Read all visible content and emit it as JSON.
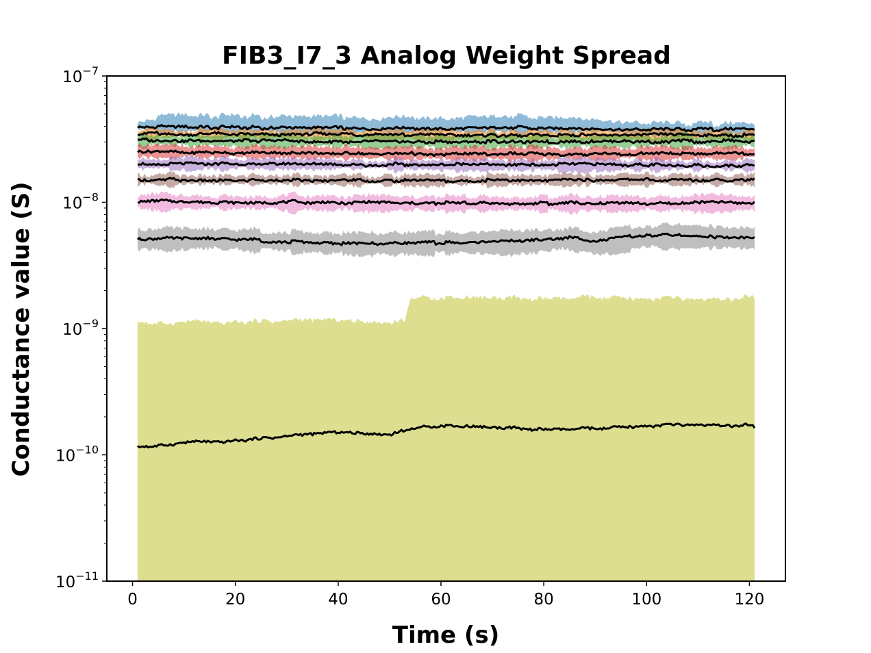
{
  "chart_data": {
    "type": "area",
    "title": "FIB3_I7_3 Analog Weight Spread",
    "xlabel": "Time (s)",
    "ylabel": "Conductance value (S)",
    "xlim": [
      -5,
      127
    ],
    "ylim": [
      1e-11,
      1e-07
    ],
    "yscale": "log",
    "grid": false,
    "legend": "none",
    "x_ticks": [
      0,
      20,
      40,
      60,
      80,
      100,
      120
    ],
    "y_ticks": [
      {
        "value": 1e-11,
        "base": "10",
        "exp": "−11"
      },
      {
        "value": 1e-10,
        "base": "10",
        "exp": "−10"
      },
      {
        "value": 1e-09,
        "base": "10",
        "exp": "−9"
      },
      {
        "value": 1e-08,
        "base": "10",
        "exp": "−8"
      },
      {
        "value": 1e-07,
        "base": "10",
        "exp": "−7"
      }
    ],
    "series": [
      {
        "color": "#1f77b4",
        "x": [
          1,
          7,
          20,
          40,
          60,
          70,
          85,
          92,
          100,
          121
        ],
        "mean": [
          4e-08,
          3.95e-08,
          3.9e-08,
          3.85e-08,
          3.85e-08,
          3.9e-08,
          3.85e-08,
          3.85e-08,
          3.75e-08,
          3.8e-08
        ],
        "low": [
          3.7e-08,
          3.65e-08,
          3.6e-08,
          3.55e-08,
          3.55e-08,
          3.6e-08,
          3.55e-08,
          3.55e-08,
          3.45e-08,
          3.5e-08
        ],
        "high": [
          4.4e-08,
          4.9e-08,
          4.8e-08,
          4.7e-08,
          4.7e-08,
          4.8e-08,
          4.7e-08,
          4.6e-08,
          4.2e-08,
          4.2e-08
        ]
      },
      {
        "color": "#ff7f0e",
        "x": [
          1,
          30,
          60,
          90,
          121
        ],
        "mean": [
          3.5e-08,
          3.45e-08,
          3.4e-08,
          3.4e-08,
          3.4e-08
        ],
        "low": [
          3.25e-08,
          3.2e-08,
          3.15e-08,
          3.15e-08,
          3.15e-08
        ],
        "high": [
          3.8e-08,
          3.75e-08,
          3.7e-08,
          3.7e-08,
          3.7e-08
        ]
      },
      {
        "color": "#2ca02c",
        "x": [
          1,
          30,
          60,
          90,
          121
        ],
        "mean": [
          3.1e-08,
          3.05e-08,
          3e-08,
          3e-08,
          3.05e-08
        ],
        "low": [
          2.8e-08,
          2.75e-08,
          2.7e-08,
          2.75e-08,
          2.75e-08
        ],
        "high": [
          3.45e-08,
          3.4e-08,
          3.4e-08,
          3.35e-08,
          3.4e-08
        ]
      },
      {
        "color": "#d62728",
        "x": [
          1,
          30,
          60,
          90,
          121
        ],
        "mean": [
          2.5e-08,
          2.45e-08,
          2.4e-08,
          2.4e-08,
          2.45e-08
        ],
        "low": [
          2.3e-08,
          2.25e-08,
          2.2e-08,
          2.2e-08,
          2.2e-08
        ],
        "high": [
          2.8e-08,
          2.75e-08,
          2.7e-08,
          2.7e-08,
          2.75e-08
        ]
      },
      {
        "color": "#9467bd",
        "x": [
          1,
          30,
          60,
          90,
          121
        ],
        "mean": [
          2e-08,
          2e-08,
          1.98e-08,
          1.98e-08,
          1.95e-08
        ],
        "low": [
          1.85e-08,
          1.85e-08,
          1.8e-08,
          1.8e-08,
          1.8e-08
        ],
        "high": [
          2.2e-08,
          2.2e-08,
          2.15e-08,
          2.15e-08,
          2.15e-08
        ]
      },
      {
        "color": "#8c564b",
        "x": [
          1,
          30,
          60,
          90,
          121
        ],
        "mean": [
          1.5e-08,
          1.5e-08,
          1.48e-08,
          1.5e-08,
          1.5e-08
        ],
        "low": [
          1.38e-08,
          1.38e-08,
          1.36e-08,
          1.38e-08,
          1.38e-08
        ],
        "high": [
          1.65e-08,
          1.65e-08,
          1.63e-08,
          1.65e-08,
          1.65e-08
        ]
      },
      {
        "color": "#e377c2",
        "x": [
          1,
          30,
          60,
          90,
          121
        ],
        "mean": [
          1.02e-08,
          1e-08,
          9.9e-09,
          9.8e-09,
          9.9e-09
        ],
        "low": [
          8.8e-09,
          8.6e-09,
          8.5e-09,
          8.5e-09,
          8.6e-09
        ],
        "high": [
          1.15e-08,
          1.13e-08,
          1.12e-08,
          1.11e-08,
          1.12e-08
        ]
      },
      {
        "color": "#7f7f7f",
        "x": [
          1,
          15,
          30,
          45,
          60,
          75,
          85,
          90,
          100,
          110,
          121
        ],
        "mean": [
          5.1e-09,
          5.2e-09,
          4.9e-09,
          4.7e-09,
          4.8e-09,
          4.9e-09,
          5.3e-09,
          5e-09,
          5.5e-09,
          5.4e-09,
          5.3e-09
        ],
        "low": [
          4.2e-09,
          4.3e-09,
          4e-09,
          3.8e-09,
          3.9e-09,
          3.9e-09,
          4.2e-09,
          3.7e-09,
          4.4e-09,
          4.3e-09,
          4.2e-09
        ],
        "high": [
          6.1e-09,
          6.2e-09,
          5.9e-09,
          5.7e-09,
          5.8e-09,
          5.9e-09,
          6.3e-09,
          6e-09,
          6.5e-09,
          6.6e-09,
          6.4e-09
        ]
      },
      {
        "color": "#bcbd22",
        "x": [
          1,
          10,
          20,
          30,
          40,
          50,
          53,
          54,
          60,
          70,
          80,
          90,
          100,
          110,
          120,
          121
        ],
        "mean": [
          1.15e-10,
          1.25e-10,
          1.3e-10,
          1.4e-10,
          1.5e-10,
          1.45e-10,
          1.55e-10,
          1.6e-10,
          1.7e-10,
          1.65e-10,
          1.6e-10,
          1.6e-10,
          1.7e-10,
          1.75e-10,
          1.7e-10,
          1.65e-10
        ],
        "low": [
          1e-11,
          1e-11,
          1e-11,
          1e-11,
          1e-11,
          1e-11,
          1e-11,
          1e-11,
          1e-11,
          1e-11,
          1e-11,
          1e-11,
          1e-11,
          1e-11,
          1e-11,
          1e-11
        ],
        "high": [
          1.12e-09,
          1.13e-09,
          1.14e-09,
          1.15e-09,
          1.15e-09,
          1.12e-09,
          1.15e-09,
          1.72e-09,
          1.75e-09,
          1.76e-09,
          1.75e-09,
          1.74e-09,
          1.74e-09,
          1.74e-09,
          1.75e-09,
          1.75e-09
        ]
      }
    ]
  }
}
